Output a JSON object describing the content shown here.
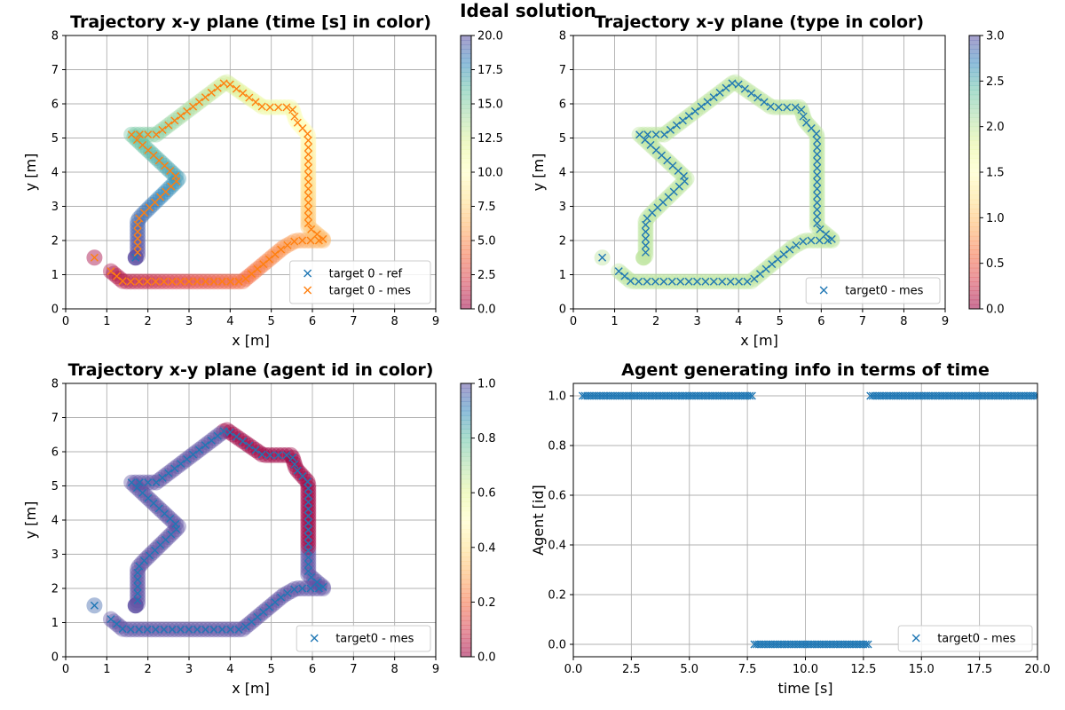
{
  "suptitle": "Ideal solution",
  "colors": {
    "ref_marker": "#1f77b4",
    "mes_marker": "#ff7f0e",
    "grid": "#b0b0b0"
  },
  "colormap": [
    "#9e0142",
    "#d53e4f",
    "#f46d43",
    "#fdae61",
    "#fee08b",
    "#ffffbf",
    "#e6f598",
    "#abdda4",
    "#66c2a5",
    "#3288bd",
    "#5e4fa2"
  ],
  "chart_data": [
    {
      "id": "p1",
      "type": "scatter",
      "title": "Trajectory x-y plane  (time [s] in color)",
      "xlabel": "x [m]",
      "ylabel": "y [m]",
      "xlim": [
        0,
        9
      ],
      "ylim": [
        0,
        8
      ],
      "xticks": [
        0,
        1,
        2,
        3,
        4,
        5,
        6,
        7,
        8,
        9
      ],
      "yticks": [
        0,
        1,
        2,
        3,
        4,
        5,
        6,
        7,
        8
      ],
      "grid": true,
      "legend_position": "lower-right",
      "legend": [
        "target 0 - ref",
        "target 0 - mes"
      ],
      "colorbar": {
        "label": "time [s]",
        "range": [
          0,
          20
        ],
        "ticks": [
          "0.0",
          "2.5",
          "5.0",
          "7.5",
          "10.0",
          "12.5",
          "15.0",
          "17.5",
          "20.0"
        ]
      },
      "color_mode": "time",
      "show_ref": true
    },
    {
      "id": "p2",
      "type": "scatter",
      "title": "Trajectory x-y plane (type in color)",
      "xlabel": "x [m]",
      "ylabel": "y [m]",
      "xlim": [
        0,
        9
      ],
      "ylim": [
        0,
        8
      ],
      "xticks": [
        0,
        1,
        2,
        3,
        4,
        5,
        6,
        7,
        8,
        9
      ],
      "yticks": [
        0,
        1,
        2,
        3,
        4,
        5,
        6,
        7,
        8
      ],
      "grid": true,
      "legend_position": "lower-right",
      "legend": [
        "target0 - mes"
      ],
      "colorbar": {
        "label": "type",
        "range": [
          0,
          3
        ],
        "ticks": [
          "0.0",
          "0.5",
          "1.0",
          "1.5",
          "2.0",
          "2.5",
          "3.0"
        ]
      },
      "color_mode": "type",
      "constant_value": 2,
      "show_ref": false
    },
    {
      "id": "p3",
      "type": "scatter",
      "title": "Trajectory x-y plane (agent id in color)",
      "xlabel": "x [m]",
      "ylabel": "y [m]",
      "xlim": [
        0,
        9
      ],
      "ylim": [
        0,
        8
      ],
      "xticks": [
        0,
        1,
        2,
        3,
        4,
        5,
        6,
        7,
        8,
        9
      ],
      "yticks": [
        0,
        1,
        2,
        3,
        4,
        5,
        6,
        7,
        8
      ],
      "grid": true,
      "legend_position": "lower-right",
      "legend": [
        "target0 - mes"
      ],
      "colorbar": {
        "label": "agent id",
        "range": [
          0,
          1
        ],
        "ticks": [
          "0.0",
          "0.2",
          "0.4",
          "0.6",
          "0.8",
          "1.0"
        ]
      },
      "color_mode": "agent",
      "show_ref": false
    },
    {
      "id": "p4",
      "type": "scatter",
      "title": "Agent generating info in terms of time",
      "xlabel": "time [s]",
      "ylabel": "Agent [id]",
      "xlim": [
        0,
        20
      ],
      "ylim": [
        -0.05,
        1.05
      ],
      "xticks": [
        0,
        2.5,
        5,
        7.5,
        10,
        12.5,
        15,
        17.5,
        20
      ],
      "xticklabels": [
        "0.0",
        "2.5",
        "5.0",
        "7.5",
        "10.0",
        "12.5",
        "15.0",
        "17.5",
        "20.0"
      ],
      "yticks": [
        0,
        0.2,
        0.4,
        0.6,
        0.8,
        1.0
      ],
      "yticklabels": [
        "0.0",
        "0.2",
        "0.4",
        "0.6",
        "0.8",
        "1.0"
      ],
      "grid": true,
      "legend_position": "lower-right",
      "legend": [
        "target0 - mes"
      ],
      "segments": [
        {
          "t_start": 0.4,
          "t_end": 7.7,
          "agent": 1
        },
        {
          "t_start": 7.8,
          "t_end": 12.7,
          "agent": 0
        },
        {
          "t_start": 12.8,
          "t_end": 20.0,
          "agent": 1
        }
      ]
    }
  ],
  "trajectory": {
    "t_start": 0.4,
    "t_end": 20.0,
    "waypoints": [
      [
        1.1,
        1.1
      ],
      [
        1.4,
        0.8
      ],
      [
        4.3,
        0.8
      ],
      [
        5.3,
        1.8
      ],
      [
        5.6,
        2.0
      ],
      [
        6.3,
        2.0
      ],
      [
        5.9,
        2.4
      ],
      [
        5.9,
        5.1
      ],
      [
        5.6,
        5.5
      ],
      [
        5.5,
        5.9
      ],
      [
        4.8,
        5.9
      ],
      [
        3.9,
        6.65
      ],
      [
        2.2,
        5.1
      ],
      [
        1.6,
        5.1
      ],
      [
        2.75,
        3.8
      ],
      [
        1.9,
        2.8
      ],
      [
        1.75,
        2.6
      ],
      [
        1.75,
        1.55
      ]
    ],
    "outlier": [
      0.7,
      1.5
    ],
    "ref_point": [
      1.7,
      1.5
    ],
    "agent_switch_times": [
      7.7,
      12.7
    ]
  }
}
